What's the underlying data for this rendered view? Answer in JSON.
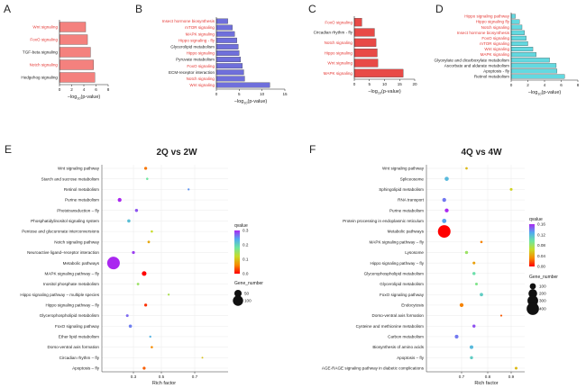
{
  "colors": {
    "panelA": "#f4817e",
    "panelB": "#6f6fdb",
    "panelC": "#e84a47",
    "panelD": "#63d9e0",
    "red_label": "#e53935",
    "black_label": "#222222",
    "grid": "#dddddd"
  },
  "chart_data": [
    {
      "type": "bar",
      "panel": "A",
      "orientation": "horizontal",
      "categories": [
        "Wnt signaling",
        "FoxO signaling",
        "TGF-beta signaling",
        "Notch signaling",
        "Hedgehog signaling"
      ],
      "label_colors": [
        "red",
        "red",
        "black",
        "red",
        "black"
      ],
      "values": [
        4.3,
        4.6,
        5.1,
        5.6,
        5.8
      ],
      "xticks": [
        "0",
        "2",
        "4",
        "6",
        "8"
      ],
      "xlim": [
        0,
        8
      ],
      "xlabel": "−log10(p-value)"
    },
    {
      "type": "bar",
      "panel": "B",
      "orientation": "horizontal",
      "categories": [
        "Insect hormone biosynthesis",
        "mTOR signaling",
        "MAPK signaling",
        "Hippo signaling - fly",
        "Glycerolipid metabolism",
        "Hippo signaling",
        "Pyruvate metabolism",
        "FoxO signaling",
        "ECM-receptor interaction",
        "Notch signaling",
        "Wnt signaling"
      ],
      "label_colors": [
        "red",
        "red",
        "red",
        "red",
        "black",
        "red",
        "black",
        "red",
        "black",
        "red",
        "red"
      ],
      "values": [
        2.5,
        3.5,
        4.0,
        4.5,
        4.8,
        5.0,
        5.3,
        5.7,
        6.0,
        6.2,
        11.7
      ],
      "xticks": [
        "0",
        "5",
        "10",
        "15"
      ],
      "xlim": [
        0,
        15
      ],
      "xlabel": "−log10(p-value)"
    },
    {
      "type": "bar",
      "panel": "C",
      "orientation": "horizontal",
      "categories": [
        "FoxO signaling",
        "Circadian rhythm - fly",
        "Notch signaling",
        "Hippo signaling",
        "Wnt signaling",
        "MAPK signaling"
      ],
      "label_colors": [
        "red",
        "black",
        "red",
        "red",
        "red",
        "red"
      ],
      "values": [
        2.5,
        6.7,
        7.2,
        7.6,
        7.8,
        16.2
      ],
      "xticks": [
        "0",
        "5",
        "10",
        "15",
        "20"
      ],
      "xlim": [
        0,
        20
      ],
      "xlabel": "−log10(p-value)"
    },
    {
      "type": "bar",
      "panel": "D",
      "orientation": "horizontal",
      "categories": [
        "Hippo signaling pathway",
        "Hippo signaling fly",
        "Notch signaling",
        "Insect hormone biosynthesis",
        "FoxO signaling",
        "mTOR signaling",
        "Wnt signaling",
        "MAPK signaling",
        "Glyoxylate and dicarboxylate metabolism",
        "Ascorbate and aldarate metabolism",
        "Apoptosis - fly",
        "Retinol metabolism"
      ],
      "label_colors": [
        "red",
        "red",
        "red",
        "red",
        "red",
        "red",
        "red",
        "red",
        "black",
        "black",
        "black",
        "black"
      ],
      "values": [
        0.5,
        1.0,
        1.3,
        1.6,
        1.8,
        2.0,
        2.6,
        3.0,
        4.6,
        5.4,
        5.5,
        6.4
      ],
      "xticks": [
        "0",
        "2",
        "4",
        "6",
        "8"
      ],
      "xlim": [
        0,
        8
      ],
      "xlabel": "−log10(p-value)"
    },
    {
      "type": "scatter",
      "panel": "E",
      "title": "2Q vs 2W",
      "xlabel": "Rich factor",
      "xticks": [
        "0.3",
        "0.5",
        "0.7"
      ],
      "xlim": [
        0.1,
        0.78
      ],
      "legend_title_color": "qvalue",
      "legend_title_size": "Gene_number",
      "color_ticks": [
        "0.3",
        "0.2",
        "0.1",
        "0.0"
      ],
      "color_range": [
        0.0,
        0.3
      ],
      "size_ticks": [
        "50",
        "100"
      ],
      "categories": [
        "Wnt signaling pathway",
        "Starch and sucrose metabolism",
        "Retinol metabolism",
        "Purine metabolism",
        "Phototransduction – fly",
        "Phosphatidylinositol signaling system",
        "Pentose and glucuronate interconversions",
        "Notch signaling pathway",
        "Neuroactive ligand–receptor interaction",
        "Metabolic pathways",
        "MAPK signaling pathway – fly",
        "Inositol phosphate metabolism",
        "Hippo signaling pathway – multiple species",
        "Hippo signaling pathway – fly",
        "Glycerophospholipid metabolism",
        "FoxO signaling pathway",
        "Ether lipid metabolism",
        "Dorso-ventral axis formation",
        "Circadian rhythm – fly",
        "Apoptosis – fly"
      ],
      "rich_factor": [
        0.38,
        0.39,
        0.66,
        0.21,
        0.32,
        0.27,
        0.42,
        0.4,
        0.3,
        0.17,
        0.37,
        0.33,
        0.53,
        0.38,
        0.26,
        0.28,
        0.41,
        0.42,
        0.75,
        0.37
      ],
      "qvalue": [
        0.05,
        0.18,
        0.25,
        0.3,
        0.28,
        0.22,
        0.12,
        0.08,
        0.29,
        0.3,
        0.0,
        0.15,
        0.14,
        0.02,
        0.27,
        0.26,
        0.23,
        0.06,
        0.1,
        0.04
      ],
      "gene_number": [
        8,
        5,
        4,
        14,
        9,
        10,
        5,
        6,
        8,
        150,
        20,
        6,
        4,
        8,
        7,
        10,
        4,
        5,
        3,
        8
      ]
    },
    {
      "type": "scatter",
      "panel": "F",
      "title": "4Q vs 4W",
      "xlabel": "Rich factor",
      "xticks": [
        "0.7",
        "0.8",
        "0.9"
      ],
      "xlim": [
        0.62,
        0.93
      ],
      "legend_title_color": "qvalue",
      "legend_title_size": "Gene_number",
      "color_ticks": [
        "0.16",
        "0.12",
        "0.08",
        "0.04",
        "0.00"
      ],
      "color_range": [
        0.0,
        0.16
      ],
      "size_ticks": [
        "100",
        "200",
        "300",
        "400"
      ],
      "categories": [
        "Wnt signaling pathway",
        "Spliceosome",
        "Sphingolipid metabolism",
        "RNA transport",
        "Purine metabolism",
        "Protein processing in endoplasmic reticulum",
        "Metabolic pathways",
        "MAPK signaling pathway – fly",
        "Lysosome",
        "Hippo signaling pathway – fly",
        "Glycerophospholipid metabolism",
        "Glycerolipid metabolism",
        "FoxO signaling pathway",
        "Endocytosis",
        "Dorso-ventral axis formation",
        "Cysteine and methionine metabolism",
        "Carbon metabolism",
        "Biosynthesis of amino acids",
        "Apoptosis – fly",
        "AGE-RAGE signaling pathway in diabetic complications"
      ],
      "rich_factor": [
        0.72,
        0.64,
        0.9,
        0.63,
        0.64,
        0.63,
        0.63,
        0.78,
        0.72,
        0.75,
        0.75,
        0.76,
        0.78,
        0.7,
        0.86,
        0.75,
        0.68,
        0.74,
        0.74,
        0.92
      ],
      "qvalue": [
        0.05,
        0.12,
        0.06,
        0.14,
        0.16,
        0.13,
        0.0,
        0.03,
        0.08,
        0.04,
        0.1,
        0.09,
        0.11,
        0.03,
        0.02,
        0.15,
        0.14,
        0.12,
        0.11,
        0.05
      ],
      "gene_number": [
        15,
        45,
        20,
        40,
        40,
        50,
        420,
        15,
        25,
        20,
        25,
        20,
        30,
        40,
        10,
        25,
        35,
        35,
        25,
        20
      ]
    }
  ]
}
